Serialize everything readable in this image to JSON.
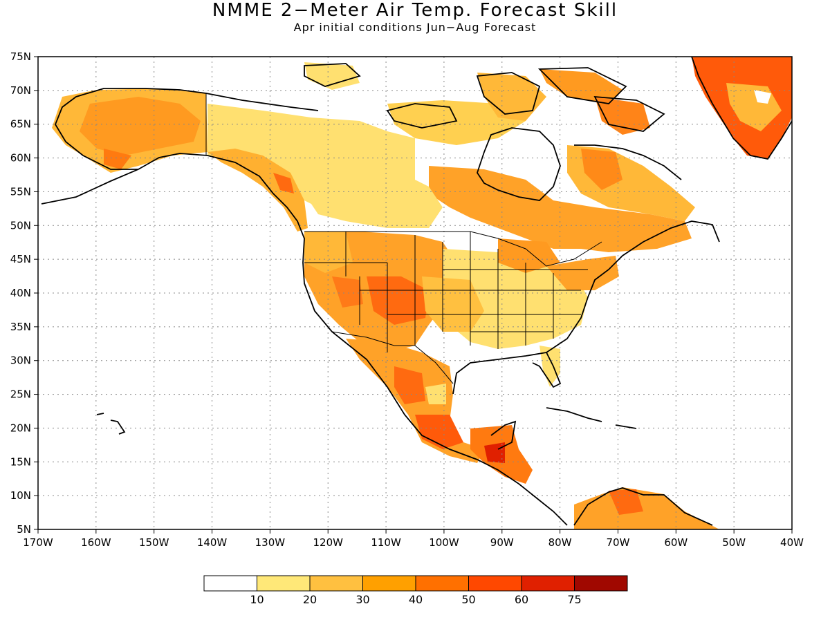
{
  "header": {
    "title": "NMME 2−Meter Air Temp. Forecast Skill",
    "subtitle": "Apr initial conditions   Jun−Aug Forecast"
  },
  "map": {
    "lon_range": [
      -170,
      -40
    ],
    "lat_range": [
      5,
      75
    ],
    "lon_ticks": [
      {
        "lon": -170,
        "label": "170W"
      },
      {
        "lon": -160,
        "label": "160W"
      },
      {
        "lon": -150,
        "label": "150W"
      },
      {
        "lon": -140,
        "label": "140W"
      },
      {
        "lon": -130,
        "label": "130W"
      },
      {
        "lon": -120,
        "label": "120W"
      },
      {
        "lon": -110,
        "label": "110W"
      },
      {
        "lon": -100,
        "label": "100W"
      },
      {
        "lon": -90,
        "label": "90W"
      },
      {
        "lon": -80,
        "label": "80W"
      },
      {
        "lon": -70,
        "label": "70W"
      },
      {
        "lon": -60,
        "label": "60W"
      },
      {
        "lon": -50,
        "label": "50W"
      },
      {
        "lon": -40,
        "label": "40W"
      }
    ],
    "lat_ticks": [
      {
        "lat": 75,
        "label": "75N"
      },
      {
        "lat": 70,
        "label": "70N"
      },
      {
        "lat": 65,
        "label": "65N"
      },
      {
        "lat": 60,
        "label": "60N"
      },
      {
        "lat": 55,
        "label": "55N"
      },
      {
        "lat": 50,
        "label": "50N"
      },
      {
        "lat": 45,
        "label": "45N"
      },
      {
        "lat": 40,
        "label": "40N"
      },
      {
        "lat": 35,
        "label": "35N"
      },
      {
        "lat": 30,
        "label": "30N"
      },
      {
        "lat": 25,
        "label": "25N"
      },
      {
        "lat": 20,
        "label": "20N"
      },
      {
        "lat": 15,
        "label": "15N"
      },
      {
        "lat": 10,
        "label": "10N"
      },
      {
        "lat": 5,
        "label": "5N"
      }
    ],
    "gridlines": true
  },
  "colorbar": {
    "colors": [
      "#ffffff",
      "#ffe878",
      "#ffc040",
      "#ffa000",
      "#ff7000",
      "#ff4800",
      "#e02000",
      "#a00800"
    ],
    "labels": [
      "10",
      "20",
      "30",
      "40",
      "50",
      "60",
      "75"
    ]
  }
}
